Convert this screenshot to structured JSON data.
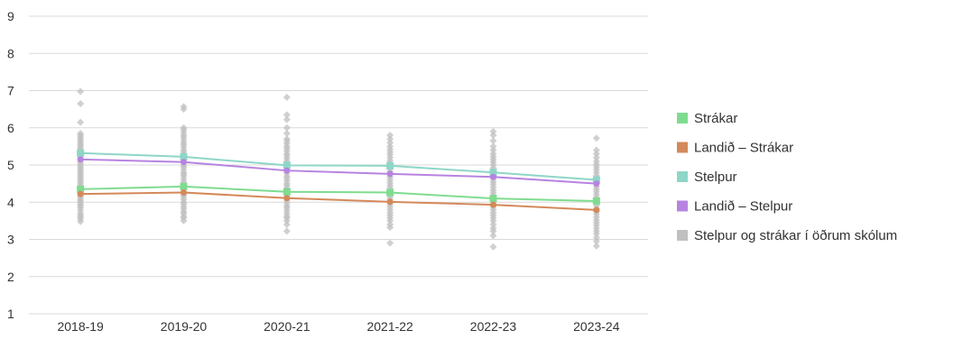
{
  "chart_data": {
    "type": "line",
    "title": "",
    "xlabel": "",
    "ylabel": "",
    "categories": [
      "2018-19",
      "2019-20",
      "2020-21",
      "2021-22",
      "2022-23",
      "2023-24"
    ],
    "ylim": [
      1,
      9
    ],
    "yticks": [
      1,
      2,
      3,
      4,
      5,
      6,
      7,
      8,
      9
    ],
    "grid": true,
    "legend_position": "right",
    "series": [
      {
        "name": "Strákar",
        "color": "#7fdc8f",
        "marker": "square",
        "values": [
          4.35,
          4.42,
          4.28,
          4.26,
          4.1,
          4.03
        ]
      },
      {
        "name": "Landið – Strákar",
        "color": "#d4895a",
        "marker": "circle",
        "values": [
          4.22,
          4.26,
          4.11,
          4.01,
          3.93,
          3.79
        ]
      },
      {
        "name": "Stelpur",
        "color": "#8ed6c7",
        "marker": "square",
        "values": [
          5.32,
          5.22,
          4.99,
          4.98,
          4.8,
          4.6
        ]
      },
      {
        "name": "Landið – Stelpur",
        "color": "#b783e0",
        "marker": "circle",
        "values": [
          5.15,
          5.08,
          4.85,
          4.76,
          4.68,
          4.5
        ]
      }
    ],
    "scatter_series": {
      "name": "Stelpur og strákar í öðrum skólum",
      "color": "#c0c0c0",
      "points": [
        [
          [
            3.48,
            3.55,
            3.6,
            3.65,
            3.7,
            3.78,
            3.85,
            3.9,
            3.95,
            4.0,
            4.05,
            4.1,
            4.15,
            4.2,
            4.25,
            4.3,
            4.38,
            4.45,
            4.5,
            4.55,
            4.6,
            4.65,
            4.7,
            4.75,
            4.8,
            4.85,
            4.9,
            4.95,
            5.0,
            5.05,
            5.1,
            5.15,
            5.2,
            5.25,
            5.3,
            5.35,
            5.4,
            5.45,
            5.5,
            5.55,
            5.6,
            5.65,
            5.7,
            5.75,
            5.8,
            5.85,
            6.15,
            6.65,
            6.98
          ]
        ],
        [
          [
            3.5,
            3.58,
            3.62,
            3.7,
            3.75,
            3.82,
            3.88,
            3.95,
            4.0,
            4.08,
            4.15,
            4.2,
            4.28,
            4.35,
            4.42,
            4.5,
            4.55,
            4.62,
            4.7,
            4.75,
            4.8,
            4.88,
            4.95,
            5.0,
            5.08,
            5.15,
            5.2,
            5.28,
            5.35,
            5.4,
            5.48,
            5.55,
            5.6,
            5.68,
            5.75,
            5.8,
            5.88,
            5.95,
            6.0,
            6.5,
            6.57
          ]
        ],
        [
          [
            3.22,
            3.4,
            3.5,
            3.58,
            3.62,
            3.7,
            3.78,
            3.85,
            3.9,
            3.98,
            4.05,
            4.1,
            4.18,
            4.25,
            4.3,
            4.38,
            4.45,
            4.5,
            4.58,
            4.65,
            4.7,
            4.78,
            4.85,
            4.9,
            4.98,
            5.05,
            5.1,
            5.18,
            5.25,
            5.3,
            5.38,
            5.45,
            5.5,
            5.58,
            5.65,
            5.7,
            5.85,
            6.0,
            6.22,
            6.35,
            6.82
          ]
        ],
        [
          [
            2.9,
            3.32,
            3.4,
            3.5,
            3.58,
            3.65,
            3.72,
            3.8,
            3.88,
            3.95,
            4.0,
            4.08,
            4.15,
            4.22,
            4.3,
            4.38,
            4.45,
            4.52,
            4.6,
            4.68,
            4.75,
            4.82,
            4.9,
            4.98,
            5.05,
            5.12,
            5.2,
            5.28,
            5.35,
            5.42,
            5.5,
            5.6,
            5.7,
            5.8
          ]
        ],
        [
          [
            2.8,
            3.1,
            3.22,
            3.3,
            3.4,
            3.5,
            3.58,
            3.65,
            3.72,
            3.8,
            3.88,
            3.95,
            4.02,
            4.1,
            4.18,
            4.25,
            4.32,
            4.4,
            4.48,
            4.55,
            4.62,
            4.7,
            4.78,
            4.85,
            4.92,
            5.0,
            5.08,
            5.15,
            5.22,
            5.3,
            5.4,
            5.5,
            5.65,
            5.8,
            5.9
          ]
        ],
        [
          [
            2.82,
            2.95,
            3.05,
            3.15,
            3.22,
            3.3,
            3.38,
            3.45,
            3.52,
            3.6,
            3.68,
            3.75,
            3.82,
            3.9,
            3.98,
            4.05,
            4.12,
            4.2,
            4.28,
            4.35,
            4.42,
            4.5,
            4.58,
            4.65,
            4.72,
            4.8,
            4.88,
            4.95,
            5.02,
            5.1,
            5.2,
            5.3,
            5.4,
            5.72
          ]
        ]
      ]
    },
    "legend": [
      {
        "label": "Strákar",
        "color": "#7fdc8f"
      },
      {
        "label": "Landið – Strákar",
        "color": "#d4895a"
      },
      {
        "label": "Stelpur",
        "color": "#8ed6c7"
      },
      {
        "label": "Landið – Stelpur",
        "color": "#b783e0"
      },
      {
        "label": "Stelpur og strákar í öðrum skólum",
        "color": "#c0c0c0"
      }
    ]
  }
}
